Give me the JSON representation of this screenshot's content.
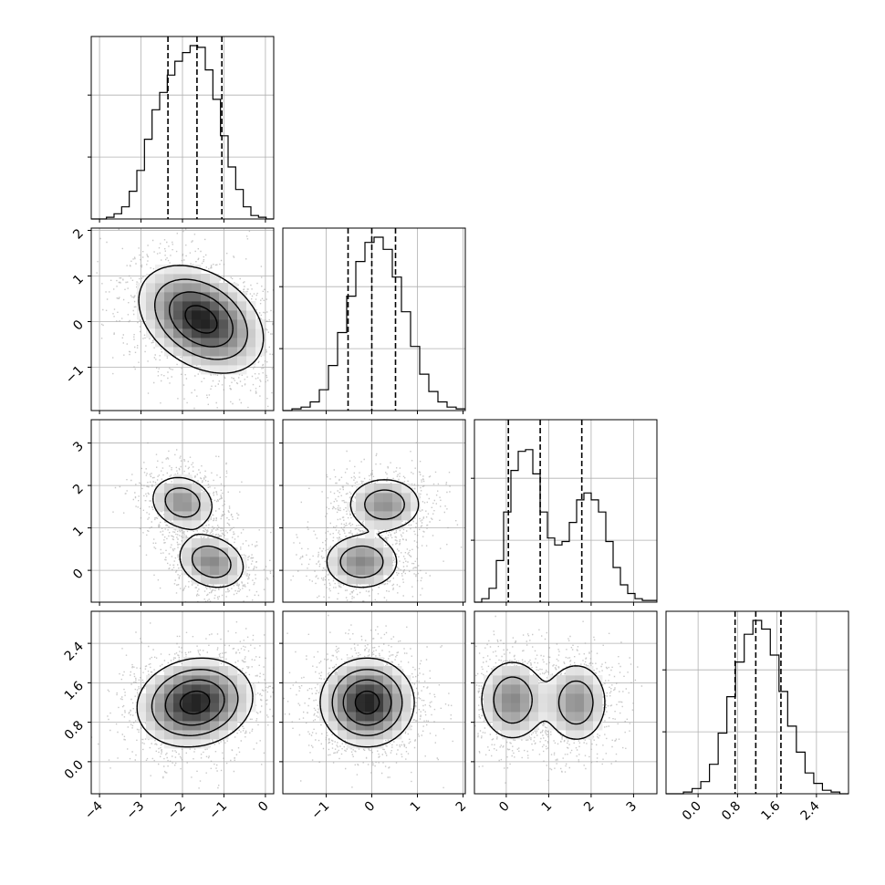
{
  "chart_data": {
    "type": "corner",
    "parameters": [
      {
        "ticks": [
          "−4",
          "−3",
          "−2",
          "−1",
          "0"
        ],
        "tick_values": [
          -4,
          -3,
          -2,
          -1,
          0
        ],
        "range": [
          -4.2,
          0.2
        ],
        "quantiles": [
          -2.35,
          -1.65,
          -1.05
        ],
        "hist_bins": [
          0,
          0,
          0.01,
          0.03,
          0.07,
          0.16,
          0.28,
          0.46,
          0.63,
          0.73,
          0.83,
          0.91,
          0.96,
          1.0,
          0.99,
          0.86,
          0.69,
          0.48,
          0.3,
          0.17,
          0.07,
          0.02,
          0.01,
          0
        ]
      },
      {
        "ticks": [
          "−1",
          "0",
          "1",
          "2"
        ],
        "tick_values": [
          -1,
          0,
          1,
          2
        ],
        "range": [
          -1.95,
          2.05
        ],
        "quantiles": [
          -0.52,
          0.0,
          0.52
        ],
        "hist_bins": [
          0,
          0.01,
          0.02,
          0.05,
          0.12,
          0.26,
          0.45,
          0.66,
          0.86,
          0.97,
          1.0,
          0.93,
          0.77,
          0.57,
          0.37,
          0.21,
          0.11,
          0.05,
          0.02,
          0.01
        ]
      },
      {
        "ticks": [
          "0",
          "1",
          "2",
          "3"
        ],
        "tick_values": [
          0,
          1,
          2,
          3
        ],
        "range": [
          -0.75,
          3.55
        ],
        "quantiles": [
          0.05,
          0.8,
          1.78
        ],
        "hist_bins": [
          0,
          0.02,
          0.08,
          0.24,
          0.52,
          0.76,
          0.87,
          0.88,
          0.74,
          0.52,
          0.37,
          0.33,
          0.35,
          0.46,
          0.59,
          0.63,
          0.59,
          0.52,
          0.35,
          0.2,
          0.1,
          0.05,
          0.02,
          0.01,
          0.01
        ]
      },
      {
        "ticks": [
          "0.0",
          "0.8",
          "1.6",
          "2.4"
        ],
        "tick_values": [
          0.0,
          0.8,
          1.6,
          2.4
        ],
        "range": [
          -0.65,
          3.05
        ],
        "quantiles": [
          0.75,
          1.17,
          1.68
        ],
        "hist_bins": [
          0,
          0,
          0.01,
          0.03,
          0.07,
          0.17,
          0.35,
          0.56,
          0.76,
          0.92,
          1.0,
          0.95,
          0.8,
          0.59,
          0.39,
          0.24,
          0.12,
          0.06,
          0.02,
          0.01,
          0
        ]
      }
    ],
    "joint_modes": {
      "1_0": [
        {
          "mx": -1.55,
          "my": 0.05,
          "sx": 0.7,
          "sy": 0.55,
          "rho": -0.35,
          "w": 1.0
        }
      ],
      "2_0": [
        {
          "mx": -2.0,
          "my": 1.6,
          "sx": 0.4,
          "sy": 0.33,
          "rho": -0.15,
          "w": 0.48
        },
        {
          "mx": -1.3,
          "my": 0.2,
          "sx": 0.42,
          "sy": 0.33,
          "rho": -0.2,
          "w": 0.52
        }
      ],
      "2_1": [
        {
          "mx": 0.28,
          "my": 1.55,
          "sx": 0.42,
          "sy": 0.33,
          "rho": 0.0,
          "w": 0.48
        },
        {
          "mx": -0.22,
          "my": 0.2,
          "sx": 0.42,
          "sy": 0.33,
          "rho": 0.0,
          "w": 0.52
        }
      ],
      "3_0": [
        {
          "mx": -1.7,
          "my": 1.2,
          "sx": 0.65,
          "sy": 0.42,
          "rho": 0.12,
          "w": 1.0
        }
      ],
      "3_1": [
        {
          "mx": -0.1,
          "my": 1.2,
          "sx": 0.48,
          "sy": 0.42,
          "rho": 0.0,
          "w": 1.0
        }
      ],
      "3_2": [
        {
          "mx": 0.15,
          "my": 1.25,
          "sx": 0.4,
          "sy": 0.42,
          "rho": 0.0,
          "w": 0.52
        },
        {
          "mx": 1.65,
          "my": 1.2,
          "sx": 0.38,
          "sy": 0.42,
          "rho": 0.0,
          "w": 0.48
        }
      ]
    },
    "contour_levels": [
      0.86,
      0.55,
      0.28,
      0.1
    ],
    "grid": true,
    "xlabel": "",
    "ylabel": ""
  }
}
